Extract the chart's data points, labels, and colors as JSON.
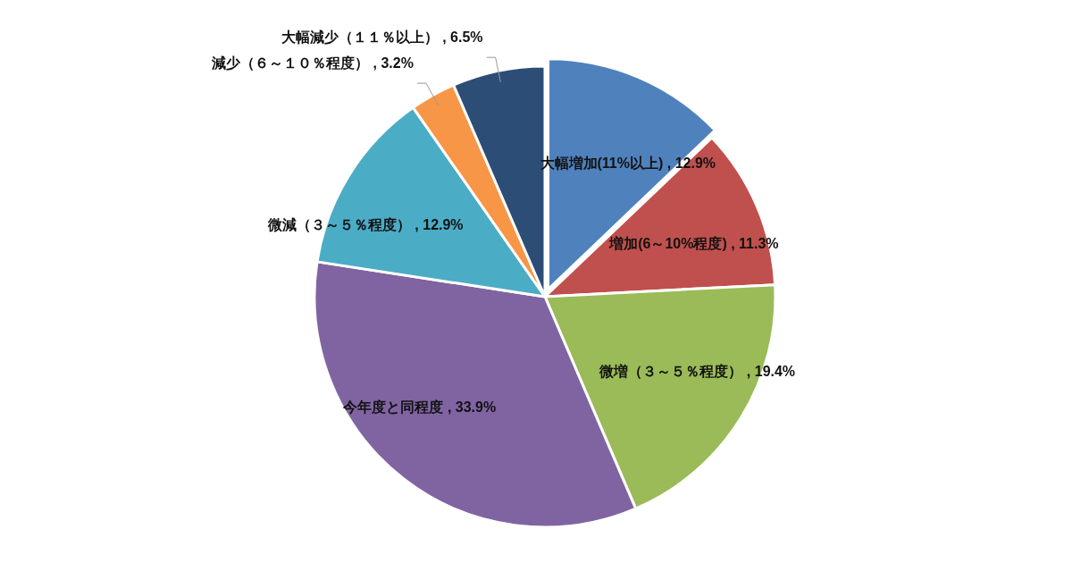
{
  "chart_data": {
    "type": "pie",
    "categories": [
      "大幅増加(11%以上)",
      "増加(6～10%程度)",
      "微増（３～５％程度）",
      "今年度と同程度",
      "微減（３～５％程度）",
      "減少（６～１０％程度）",
      "大幅減少（１１％以上）"
    ],
    "value_labels": [
      "12.9%",
      "11.3%",
      "19.4%",
      "33.9%",
      "12.9%",
      "3.2%",
      "6.5%"
    ],
    "values": [
      12.9,
      11.3,
      19.4,
      33.9,
      12.9,
      3.2,
      6.5
    ],
    "colors": [
      "#4f81bd",
      "#c0504d",
      "#9bbb59",
      "#8064a2",
      "#4bacc6",
      "#f79646",
      "#2c4d75"
    ]
  }
}
